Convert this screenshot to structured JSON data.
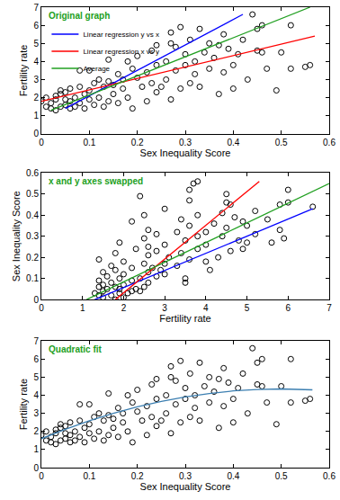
{
  "chart_data": [
    {
      "type": "scatter",
      "title": "Original graph",
      "x_label": "Sex Inequality Score",
      "y_label": "Fertility rate",
      "xlim": [
        0,
        0.6
      ],
      "ylim": [
        0,
        7
      ],
      "xticks": [
        0,
        0.1,
        0.2,
        0.3,
        0.4,
        0.5,
        0.6
      ],
      "yticks": [
        0,
        1,
        2,
        3,
        4,
        5,
        6,
        7
      ],
      "grid": false,
      "legend": "upper left",
      "series": [
        {
          "type": "scatter",
          "marker": "circle-open",
          "color": "#000000",
          "x": [
            0.0,
            0.01,
            0.01,
            0.02,
            0.02,
            0.03,
            0.03,
            0.03,
            0.04,
            0.04,
            0.04,
            0.05,
            0.05,
            0.05,
            0.06,
            0.06,
            0.06,
            0.07,
            0.07,
            0.08,
            0.08,
            0.09,
            0.09,
            0.1,
            0.1,
            0.1,
            0.11,
            0.11,
            0.12,
            0.12,
            0.13,
            0.13,
            0.14,
            0.14,
            0.15,
            0.15,
            0.16,
            0.16,
            0.17,
            0.17,
            0.18,
            0.18,
            0.19,
            0.19,
            0.2,
            0.2,
            0.21,
            0.24,
            0.22,
            0.22,
            0.23,
            0.23,
            0.24,
            0.24,
            0.27,
            0.25,
            0.26,
            0.26,
            0.27,
            0.27,
            0.28,
            0.28,
            0.29,
            0.29,
            0.3,
            0.3,
            0.31,
            0.31,
            0.32,
            0.32,
            0.33,
            0.33,
            0.34,
            0.35,
            0.35,
            0.36,
            0.37,
            0.37,
            0.38,
            0.38,
            0.39,
            0.4,
            0.4,
            0.41,
            0.42,
            0.43,
            0.44,
            0.45,
            0.45,
            0.46,
            0.46,
            0.47,
            0.5,
            0.52,
            0.52,
            0.55,
            0.56,
            0.49,
            0.14,
            0.08
          ],
          "values": [
            1.8,
            1.5,
            2.0,
            1.4,
            1.7,
            1.9,
            2.1,
            1.3,
            1.5,
            2.2,
            2.4,
            1.6,
            1.9,
            2.3,
            1.4,
            1.8,
            2.5,
            1.5,
            2.0,
            1.7,
            2.6,
            1.4,
            2.2,
            1.9,
            2.4,
            3.5,
            1.6,
            2.8,
            2.0,
            3.0,
            1.5,
            2.6,
            1.8,
            2.9,
            2.2,
            2.7,
            3.3,
            1.7,
            2.5,
            3.0,
            4.0,
            2.0,
            3.6,
            1.4,
            3.1,
            4.3,
            2.6,
            4.9,
            1.8,
            3.4,
            2.8,
            4.6,
            3.8,
            2.3,
            5.6,
            2.6,
            4.0,
            3.0,
            5.0,
            1.9,
            3.5,
            4.8,
            2.5,
            5.9,
            3.8,
            4.4,
            2.8,
            5.2,
            4.0,
            3.3,
            5.8,
            2.6,
            4.5,
            3.6,
            5.0,
            4.2,
            2.2,
            4.9,
            3.4,
            5.5,
            4.7,
            2.5,
            3.8,
            4.4,
            5.2,
            3.0,
            6.6,
            4.6,
            5.8,
            4.5,
            6.0,
            3.6,
            4.5,
            6.0,
            3.6,
            3.7,
            3.8,
            2.4,
            4.1,
            3.5
          ]
        },
        {
          "name": "Linear regression y vs x",
          "type": "line",
          "line_style": "solid",
          "color": "#0000ff",
          "x": [
            0.05,
            0.42
          ],
          "values": [
            1.4,
            6.6
          ]
        },
        {
          "name": "Linear regression x vs y",
          "type": "line",
          "line_style": "solid",
          "color": "#ff0000",
          "x": [
            0.0,
            0.57
          ],
          "values": [
            1.8,
            5.4
          ]
        },
        {
          "name": "Average",
          "type": "line",
          "line_style": "solid",
          "color": "#22a022",
          "x": [
            0.02,
            0.56
          ],
          "values": [
            1.3,
            7.0
          ]
        }
      ]
    },
    {
      "type": "scatter",
      "title": "x and y axes swapped",
      "x_label": "Fertility rate",
      "y_label": "Sex Inequality Score",
      "xlim": [
        0,
        7
      ],
      "ylim": [
        0,
        0.6
      ],
      "xticks": [
        0,
        1,
        2,
        3,
        4,
        5,
        6,
        7
      ],
      "yticks": [
        0,
        0.1,
        0.2,
        0.3,
        0.4,
        0.5,
        0.6
      ],
      "grid": false,
      "series": [
        {
          "type": "scatter",
          "marker": "circle-open",
          "color": "#000000",
          "x": [
            1.8,
            1.5,
            2.0,
            1.4,
            1.7,
            1.9,
            2.1,
            1.3,
            1.5,
            2.2,
            2.4,
            1.6,
            1.9,
            2.3,
            1.4,
            1.8,
            2.5,
            1.5,
            2.0,
            1.7,
            2.6,
            1.4,
            2.2,
            1.9,
            2.4,
            3.5,
            1.6,
            2.8,
            2.0,
            3.0,
            1.5,
            2.6,
            1.8,
            2.9,
            2.2,
            2.7,
            3.3,
            1.7,
            2.5,
            3.0,
            4.0,
            2.0,
            3.6,
            1.4,
            3.1,
            4.3,
            2.6,
            4.9,
            1.8,
            3.4,
            2.8,
            4.6,
            3.8,
            2.3,
            5.6,
            2.6,
            4.0,
            3.0,
            5.0,
            1.9,
            3.5,
            4.8,
            2.5,
            5.9,
            3.8,
            4.4,
            2.8,
            5.2,
            4.0,
            3.3,
            5.8,
            2.6,
            4.5,
            3.6,
            5.0,
            4.2,
            2.2,
            4.9,
            3.4,
            5.5,
            4.7,
            2.5,
            3.8,
            4.4,
            5.2,
            3.0,
            6.6,
            4.6,
            5.8,
            4.5,
            6.0,
            3.6,
            4.5,
            6.0,
            3.6,
            3.7,
            3.8,
            2.4,
            4.1,
            3.5
          ],
          "values": [
            0.0,
            0.01,
            0.01,
            0.02,
            0.02,
            0.03,
            0.03,
            0.03,
            0.04,
            0.04,
            0.04,
            0.05,
            0.05,
            0.05,
            0.06,
            0.06,
            0.06,
            0.07,
            0.07,
            0.08,
            0.08,
            0.09,
            0.09,
            0.1,
            0.1,
            0.1,
            0.11,
            0.11,
            0.12,
            0.12,
            0.13,
            0.13,
            0.14,
            0.14,
            0.15,
            0.15,
            0.16,
            0.16,
            0.17,
            0.17,
            0.18,
            0.18,
            0.19,
            0.19,
            0.2,
            0.2,
            0.21,
            0.24,
            0.22,
            0.22,
            0.23,
            0.23,
            0.24,
            0.24,
            0.27,
            0.25,
            0.26,
            0.26,
            0.27,
            0.27,
            0.28,
            0.28,
            0.29,
            0.29,
            0.3,
            0.3,
            0.31,
            0.31,
            0.32,
            0.32,
            0.33,
            0.33,
            0.34,
            0.35,
            0.35,
            0.36,
            0.37,
            0.37,
            0.38,
            0.38,
            0.39,
            0.4,
            0.4,
            0.41,
            0.42,
            0.43,
            0.44,
            0.45,
            0.45,
            0.46,
            0.46,
            0.47,
            0.5,
            0.52,
            0.52,
            0.55,
            0.56,
            0.49,
            0.14,
            0.08
          ]
        },
        {
          "type": "line",
          "line_style": "solid",
          "color": "#0000ff",
          "x": [
            1.3,
            6.6
          ],
          "values": [
            0.0,
            0.43
          ]
        },
        {
          "type": "line",
          "line_style": "solid",
          "color": "#ff0000",
          "x": [
            1.8,
            5.3
          ],
          "values": [
            0.0,
            0.56
          ]
        },
        {
          "type": "line",
          "line_style": "solid",
          "color": "#22a022",
          "x": [
            1.1,
            7.0
          ],
          "values": [
            0.0,
            0.55
          ]
        }
      ]
    },
    {
      "type": "scatter",
      "title": "Quadratic fit",
      "x_label": "Sex Inequality Score",
      "y_label": "Fertility rate",
      "xlim": [
        0,
        0.6
      ],
      "ylim": [
        0,
        7
      ],
      "xticks": [
        0,
        0.1,
        0.2,
        0.3,
        0.4,
        0.5,
        0.6
      ],
      "yticks": [
        0,
        1,
        2,
        3,
        4,
        5,
        6,
        7
      ],
      "grid": false,
      "series": [
        {
          "type": "scatter",
          "marker": "circle-open",
          "color": "#000000",
          "x": [
            0.0,
            0.01,
            0.01,
            0.02,
            0.02,
            0.03,
            0.03,
            0.03,
            0.04,
            0.04,
            0.04,
            0.05,
            0.05,
            0.05,
            0.06,
            0.06,
            0.06,
            0.07,
            0.07,
            0.08,
            0.08,
            0.09,
            0.09,
            0.1,
            0.1,
            0.1,
            0.11,
            0.11,
            0.12,
            0.12,
            0.13,
            0.13,
            0.14,
            0.14,
            0.15,
            0.15,
            0.16,
            0.16,
            0.17,
            0.17,
            0.18,
            0.18,
            0.19,
            0.19,
            0.2,
            0.2,
            0.21,
            0.24,
            0.22,
            0.22,
            0.23,
            0.23,
            0.24,
            0.24,
            0.27,
            0.25,
            0.26,
            0.26,
            0.27,
            0.27,
            0.28,
            0.28,
            0.29,
            0.29,
            0.3,
            0.3,
            0.31,
            0.31,
            0.32,
            0.32,
            0.33,
            0.33,
            0.34,
            0.35,
            0.35,
            0.36,
            0.37,
            0.37,
            0.38,
            0.38,
            0.39,
            0.4,
            0.4,
            0.41,
            0.42,
            0.43,
            0.44,
            0.45,
            0.45,
            0.46,
            0.46,
            0.47,
            0.5,
            0.52,
            0.52,
            0.55,
            0.56,
            0.49,
            0.14,
            0.08
          ],
          "values": [
            1.8,
            1.5,
            2.0,
            1.4,
            1.7,
            1.9,
            2.1,
            1.3,
            1.5,
            2.2,
            2.4,
            1.6,
            1.9,
            2.3,
            1.4,
            1.8,
            2.5,
            1.5,
            2.0,
            1.7,
            2.6,
            1.4,
            2.2,
            1.9,
            2.4,
            3.5,
            1.6,
            2.8,
            2.0,
            3.0,
            1.5,
            2.6,
            1.8,
            2.9,
            2.2,
            2.7,
            3.3,
            1.7,
            2.5,
            3.0,
            4.0,
            2.0,
            3.6,
            1.4,
            3.1,
            4.3,
            2.6,
            4.9,
            1.8,
            3.4,
            2.8,
            4.6,
            3.8,
            2.3,
            5.6,
            2.6,
            4.0,
            3.0,
            5.0,
            1.9,
            3.5,
            4.8,
            2.5,
            5.9,
            3.8,
            4.4,
            2.8,
            5.2,
            4.0,
            3.3,
            5.8,
            2.6,
            4.5,
            3.6,
            5.0,
            4.2,
            2.2,
            4.9,
            3.4,
            5.5,
            4.7,
            2.5,
            3.8,
            4.4,
            5.2,
            3.0,
            6.6,
            4.6,
            5.8,
            4.5,
            6.0,
            3.6,
            4.5,
            6.0,
            3.6,
            3.7,
            3.8,
            2.4,
            4.1,
            3.5
          ]
        },
        {
          "type": "line",
          "line_style": "solid",
          "color": "#3c7fb1",
          "x": [
            0,
            0.05,
            0.1,
            0.15,
            0.2,
            0.25,
            0.3,
            0.35,
            0.4,
            0.45,
            0.5,
            0.55,
            0.565
          ],
          "values": [
            1.6,
            2.12,
            2.59,
            3.0,
            3.36,
            3.66,
            3.91,
            4.1,
            4.24,
            4.32,
            4.35,
            4.32,
            4.3
          ]
        }
      ]
    }
  ]
}
